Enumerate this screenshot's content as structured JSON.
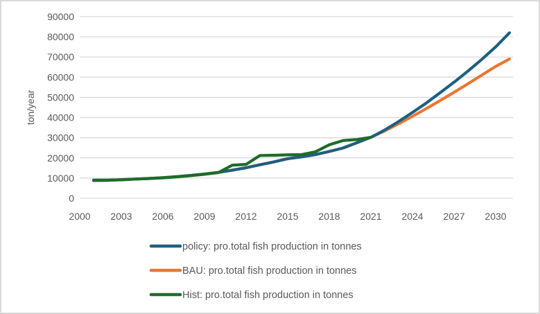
{
  "chart_data": {
    "type": "line",
    "title": "",
    "xlabel": "",
    "ylabel": "ton/year",
    "ylim": [
      0,
      90000
    ],
    "xlim": [
      2000,
      2031
    ],
    "grid": true,
    "legend_position": "bottom",
    "y_ticks": [
      0,
      10000,
      20000,
      30000,
      40000,
      50000,
      60000,
      70000,
      80000,
      90000
    ],
    "x_ticks": [
      2000,
      2003,
      2006,
      2009,
      2012,
      2015,
      2018,
      2021,
      2024,
      2027,
      2030
    ],
    "series": [
      {
        "name": "policy: pro.total fish production in tonnes",
        "color": "#1f5f82",
        "x": [
          2001,
          2002,
          2003,
          2004,
          2005,
          2006,
          2007,
          2008,
          2009,
          2010,
          2011,
          2012,
          2013,
          2014,
          2015,
          2016,
          2017,
          2018,
          2019,
          2020,
          2021,
          2022,
          2023,
          2024,
          2025,
          2026,
          2027,
          2028,
          2029,
          2030,
          2031
        ],
        "values": [
          8800,
          8900,
          9200,
          9500,
          9800,
          10200,
          10700,
          11300,
          12000,
          12800,
          13900,
          15100,
          16600,
          18000,
          19600,
          20500,
          21600,
          23200,
          24900,
          27500,
          30200,
          33800,
          38000,
          42500,
          47200,
          52300,
          57500,
          63000,
          68800,
          75000,
          82000
        ]
      },
      {
        "name": "BAU: pro.total fish production in tonnes",
        "color": "#e97732",
        "x": [
          2001,
          2002,
          2003,
          2004,
          2005,
          2006,
          2007,
          2008,
          2009,
          2010,
          2011,
          2012,
          2013,
          2014,
          2015,
          2016,
          2017,
          2018,
          2019,
          2020,
          2021,
          2022,
          2023,
          2024,
          2025,
          2026,
          2027,
          2028,
          2029,
          2030,
          2031
        ],
        "values": [
          8800,
          8900,
          9200,
          9500,
          9800,
          10200,
          10700,
          11300,
          12000,
          12800,
          13900,
          15100,
          16600,
          18000,
          19600,
          20500,
          21600,
          23200,
          24900,
          27500,
          30200,
          33400,
          36900,
          40600,
          44400,
          48400,
          52500,
          56700,
          61000,
          65300,
          69000
        ]
      },
      {
        "name": "Hist: pro.total fish production in tonnes",
        "color": "#1e6b2b",
        "x": [
          2001,
          2002,
          2003,
          2004,
          2005,
          2006,
          2007,
          2008,
          2009,
          2010,
          2011,
          2012,
          2013,
          2014,
          2015,
          2016,
          2017,
          2018,
          2019,
          2020,
          2021
        ],
        "values": [
          9000,
          9000,
          9100,
          9500,
          9800,
          10100,
          10600,
          11200,
          11900,
          12700,
          16400,
          16800,
          21200,
          21300,
          21500,
          21600,
          23000,
          26500,
          28600,
          29100,
          30200
        ]
      }
    ]
  }
}
